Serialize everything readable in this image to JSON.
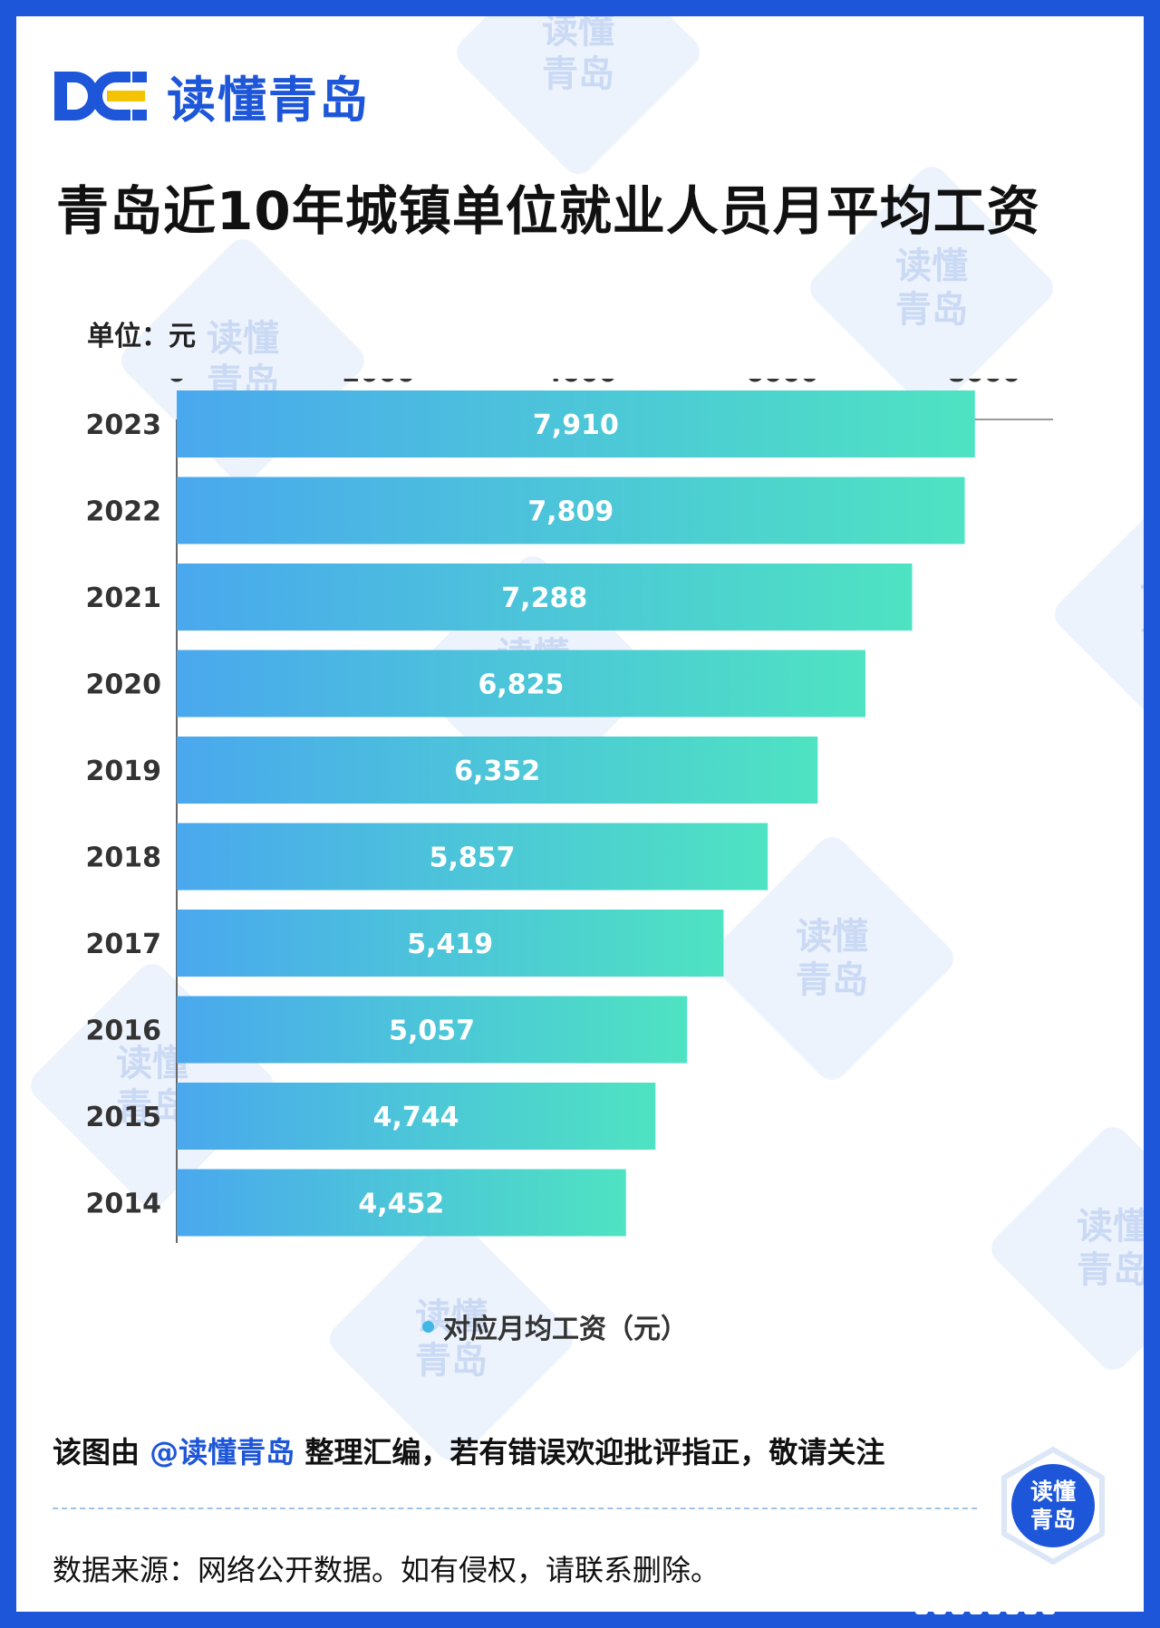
{
  "brand": {
    "name": "读懂青岛",
    "logo_icon": "dq-logo-icon",
    "primary_color": "#1d56d8",
    "accent_color": "#f5c400"
  },
  "header": {
    "title": "青岛近10年城镇单位就业人员月平均工资"
  },
  "chart_meta": {
    "unit_label": "单位：元"
  },
  "chart_data": {
    "type": "bar",
    "orientation": "horizontal",
    "title": "青岛近10年城镇单位就业人员月平均工资",
    "unit": "单位：元",
    "categories": [
      "2023",
      "2022",
      "2021",
      "2020",
      "2019",
      "2018",
      "2017",
      "2016",
      "2015",
      "2014"
    ],
    "series": [
      {
        "name": "对应月均工资（元）",
        "values": [
          7910,
          7809,
          7288,
          6825,
          6352,
          5857,
          5419,
          5057,
          4744,
          4452
        ]
      }
    ],
    "value_labels": [
      "7,910",
      "7,809",
      "7,288",
      "6,825",
      "6,352",
      "5,857",
      "5,419",
      "5,057",
      "4,744",
      "4,452"
    ],
    "x_ticks": [
      "0",
      "2000",
      "4000",
      "6000",
      "8000"
    ],
    "xlim": [
      0,
      8700
    ],
    "axis_position": "top",
    "grid": false,
    "legend_position": "bottom-center",
    "bar_gradient": [
      "#4aa8ee",
      "#4ee3c2"
    ]
  },
  "legend": {
    "label": "对应月均工资（元）"
  },
  "footer": {
    "credit_prefix": "该图由 ",
    "credit_handle": "@读懂青岛",
    "credit_suffix": " 整理汇编，若有错误欢迎批评指正，敬请关注",
    "source": "数据来源：网络公开数据。如有侵权，请联系删除。",
    "badge_line1": "读懂",
    "badge_line2": "青岛"
  },
  "watermark": {
    "line1": "读懂",
    "line2": "青岛"
  }
}
